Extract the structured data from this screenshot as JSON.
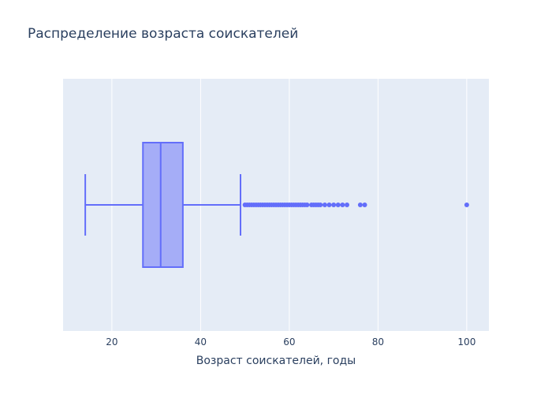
{
  "chart_data": {
    "type": "box",
    "orientation": "horizontal",
    "title": "Распределение возраста соискателей",
    "xlabel": "Возраст соискателей, годы",
    "ylabel": "",
    "xlim": [
      9,
      105
    ],
    "xticks": [
      20,
      40,
      60,
      80,
      100
    ],
    "grid": true,
    "legend": "none",
    "colors": {
      "plot_bg": "#E5ECF6",
      "grid": "#ffffff",
      "box_fill": "#A5ADF7",
      "box_line": "#636EFA",
      "text": "#2a3f5f"
    },
    "box": {
      "lower_fence": 14,
      "q1": 27,
      "median": 31,
      "q3": 36,
      "upper_fence": 49
    },
    "outliers": [
      50,
      50.5,
      51,
      51.5,
      52,
      52.5,
      53,
      53.5,
      54,
      54.5,
      55,
      55.5,
      56,
      56.5,
      57,
      57.5,
      58,
      58.5,
      59,
      59.5,
      60,
      60.5,
      61,
      61.5,
      62,
      62.5,
      63,
      63.5,
      64,
      65,
      65.5,
      66,
      66.5,
      67,
      68,
      69,
      70,
      71,
      72,
      73,
      76,
      77,
      100
    ]
  }
}
